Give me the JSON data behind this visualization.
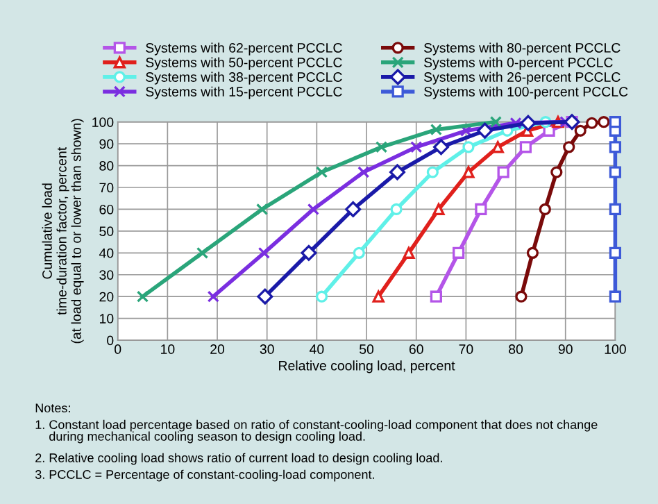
{
  "chart_data": {
    "type": "line",
    "xlabel": "Relative cooling load, percent",
    "ylabel": "Cumulative load\ntime-duration factor, percent\n(at load equal to or lower than shown)",
    "xlim": [
      0,
      100
    ],
    "ylim": [
      0,
      100
    ],
    "xticks": [
      0,
      10,
      20,
      30,
      40,
      50,
      60,
      70,
      80,
      90,
      100
    ],
    "yticks": [
      0,
      10,
      20,
      30,
      40,
      50,
      60,
      70,
      80,
      90,
      100
    ],
    "grid": true,
    "legend": "top",
    "line_style": "solid",
    "series": [
      {
        "name": "Systems with 62-percent PCCLC",
        "color": "#b455e8",
        "marker": "square",
        "x": [
          64,
          68.5,
          73,
          77.5,
          82,
          86.7,
          91.3
        ],
        "values": [
          20,
          40,
          60,
          77,
          88.5,
          96,
          100
        ]
      },
      {
        "name": "Systems with 50-percent PCCLC",
        "color": "#e0201c",
        "marker": "triangle",
        "x": [
          52.4,
          58.5,
          64.5,
          70.5,
          76.4,
          82.3,
          88.5
        ],
        "values": [
          20,
          40,
          60,
          77,
          88.5,
          96,
          100
        ]
      },
      {
        "name": "Systems with 38-percent PCCLC",
        "color": "#5ff0e8",
        "marker": "circle",
        "x": [
          41,
          48.5,
          56,
          63.3,
          70.5,
          78.3,
          86
        ],
        "values": [
          20,
          40,
          60,
          77,
          88.5,
          96,
          100
        ]
      },
      {
        "name": "Systems with 15-percent PCCLC",
        "color": "#7a2ee0",
        "marker": "cross",
        "x": [
          19.2,
          29.4,
          39.3,
          49.4,
          60,
          70,
          80,
          90
        ],
        "values": [
          20,
          40,
          60,
          77,
          88.5,
          96,
          99.5,
          100
        ]
      },
      {
        "name": "Systems with 80-percent PCCLC",
        "color": "#7a0a0a",
        "marker": "circle",
        "x": [
          81.1,
          83.4,
          85.9,
          88.2,
          90.7,
          93,
          95.3,
          97.7
        ],
        "values": [
          20,
          40,
          60,
          77,
          88.5,
          96,
          99.5,
          100
        ]
      },
      {
        "name": "Systems with 0-percent PCCLC",
        "color": "#2aa57a",
        "marker": "cross",
        "x": [
          5,
          17,
          29,
          41,
          53,
          64,
          76
        ],
        "values": [
          20,
          40,
          60,
          77,
          88.5,
          96.5,
          100
        ]
      },
      {
        "name": "Systems with 26-percent PCCLC",
        "color": "#1a1aa8",
        "marker": "diamond",
        "x": [
          29.6,
          38.4,
          47.3,
          56.2,
          65,
          73.8,
          82.5,
          91.3
        ],
        "values": [
          20,
          40,
          60,
          77,
          88.5,
          96,
          99.5,
          100
        ]
      },
      {
        "name": "Systems with 100-percent PCCLC",
        "color": "#3d5ad8",
        "marker": "square",
        "x": [
          100,
          100,
          100,
          100,
          100,
          100,
          100
        ],
        "values": [
          20,
          40,
          60,
          77,
          88.5,
          96,
          100
        ]
      }
    ],
    "annotations": [
      "Notes:",
      "1. Constant load percentage based on ratio of constant-cooling-load component that does not change\n    during mechanical cooling season to design cooling load.",
      "2. Relative cooling load shows ratio of current load to design cooling load.",
      "3. PCCLC = Percentage of constant-cooling-load component."
    ]
  }
}
